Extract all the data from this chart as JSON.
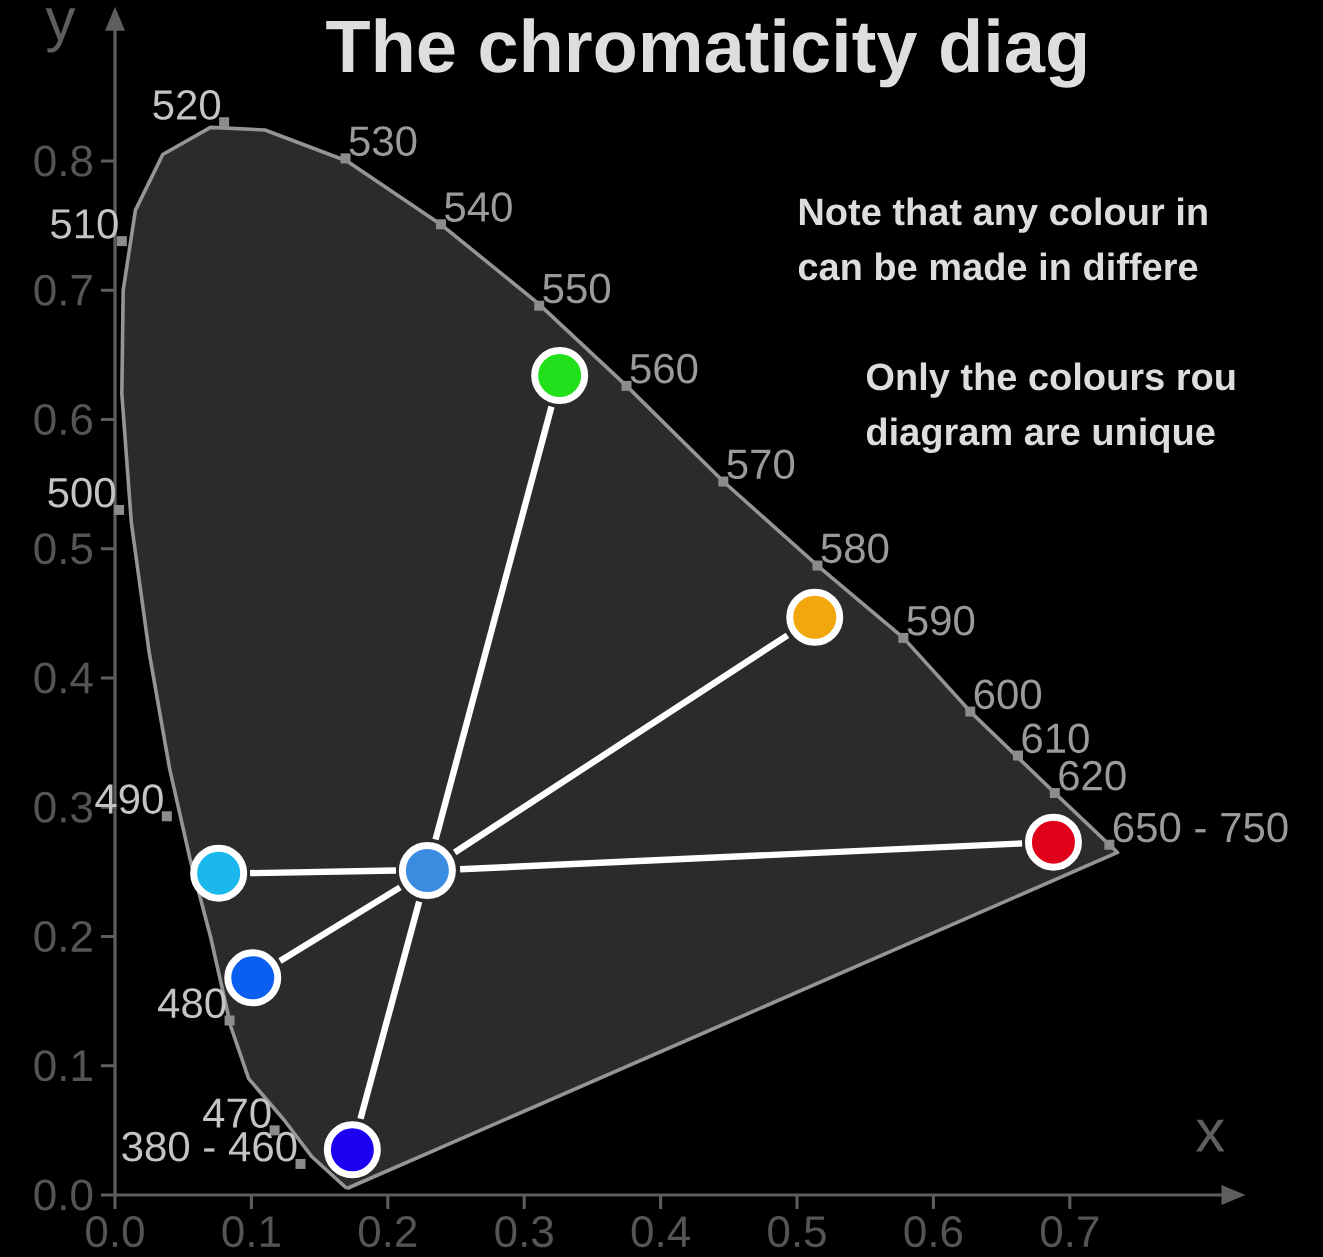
{
  "chart_data": {
    "type": "line",
    "title": "The chromaticity diag",
    "xlabel": "x",
    "ylabel": "y",
    "xlim": [
      0,
      0.82
    ],
    "ylim": [
      0,
      0.91
    ],
    "xticks": [
      {
        "value": 0,
        "label": "0.0"
      },
      0.1,
      0.2,
      0.3,
      0.4,
      0.5,
      0.6,
      0.7
    ],
    "yticks": [
      {
        "value": 0,
        "label": "0.0"
      },
      0.1,
      0.2,
      0.3,
      0.4,
      0.5,
      0.6,
      0.7,
      0.8
    ],
    "series": [
      {
        "type": "area",
        "color": "#2b2b2b",
        "x": [
          0.17,
          0.144,
          0.124,
          0.098,
          0.085,
          0.07,
          0.055,
          0.04,
          0.025,
          0.012,
          0.005,
          0.006,
          0.015,
          0.035,
          0.07,
          0.11,
          0.17,
          0.24,
          0.31,
          0.375,
          0.446,
          0.515,
          0.578,
          0.627,
          0.689,
          0.735,
          0.17
        ],
        "values": [
          0.005,
          0.03,
          0.058,
          0.09,
          0.13,
          0.2,
          0.26,
          0.33,
          0.42,
          0.52,
          0.62,
          0.7,
          0.762,
          0.805,
          0.826,
          0.824,
          0.8,
          0.75,
          0.69,
          0.626,
          0.552,
          0.487,
          0.431,
          0.374,
          0.311,
          0.265,
          0.005
        ]
      },
      {
        "color": "#ffffff",
        "x": [
          0.099,
          0.206
        ],
        "values": [
          0.249,
          0.251
        ]
      },
      {
        "color": "#ffffff",
        "x": [
          0.253,
          0.665
        ],
        "values": [
          0.252,
          0.272
        ]
      },
      {
        "color": "#ffffff",
        "x": [
          0.235,
          0.32
        ],
        "values": [
          0.275,
          0.61
        ]
      },
      {
        "color": "#ffffff",
        "x": [
          0.223,
          0.18
        ],
        "values": [
          0.227,
          0.059
        ]
      },
      {
        "color": "#ffffff",
        "x": [
          0.249,
          0.493
        ],
        "values": [
          0.265,
          0.433
        ]
      },
      {
        "color": "#ffffff",
        "x": [
          0.209,
          0.121
        ],
        "values": [
          0.238,
          0.181
        ]
      },
      {
        "type": "scatter",
        "x": [
          0.326,
          0.513,
          0.688,
          0.076,
          0.229,
          0.101,
          0.174
        ],
        "values": [
          0.634,
          0.447,
          0.273,
          0.249,
          0.251,
          0.168,
          0.035
        ],
        "colors": [
          "#22e01c",
          "#f2a80c",
          "#e0001a",
          "#1ab8ec",
          "#3a8ce0",
          "#0a5ef0",
          "#1c00f0"
        ]
      }
    ],
    "annotations": [
      {
        "text": "520",
        "x": 0.08,
        "y": 0.83
      },
      {
        "text": "530",
        "x": 0.169,
        "y": 0.802
      },
      {
        "text": "540",
        "x": 0.239,
        "y": 0.751
      },
      {
        "text": "550",
        "x": 0.311,
        "y": 0.688
      },
      {
        "text": "560",
        "x": 0.375,
        "y": 0.626
      },
      {
        "text": "570",
        "x": 0.446,
        "y": 0.552
      },
      {
        "text": "580",
        "x": 0.515,
        "y": 0.487
      },
      {
        "text": "590",
        "x": 0.578,
        "y": 0.431
      },
      {
        "text": "600",
        "x": 0.627,
        "y": 0.374
      },
      {
        "text": "610",
        "x": 0.662,
        "y": 0.34
      },
      {
        "text": "620",
        "x": 0.689,
        "y": 0.311
      },
      {
        "text": "650 - 750",
        "x": 0.729,
        "y": 0.271
      },
      {
        "text": "510",
        "x": 0.005,
        "y": 0.738
      },
      {
        "text": "500",
        "x": 0.003,
        "y": 0.53
      },
      {
        "text": "490",
        "x": 0.038,
        "y": 0.293
      },
      {
        "text": "480",
        "x": 0.084,
        "y": 0.135
      },
      {
        "text": "470",
        "x": 0.117,
        "y": 0.05
      },
      {
        "text": "380 - 460",
        "x": 0.136,
        "y": 0.024
      },
      "Note that any colour in",
      "can be made in differe",
      "Only the colours rou",
      "diagram are unique"
    ]
  }
}
